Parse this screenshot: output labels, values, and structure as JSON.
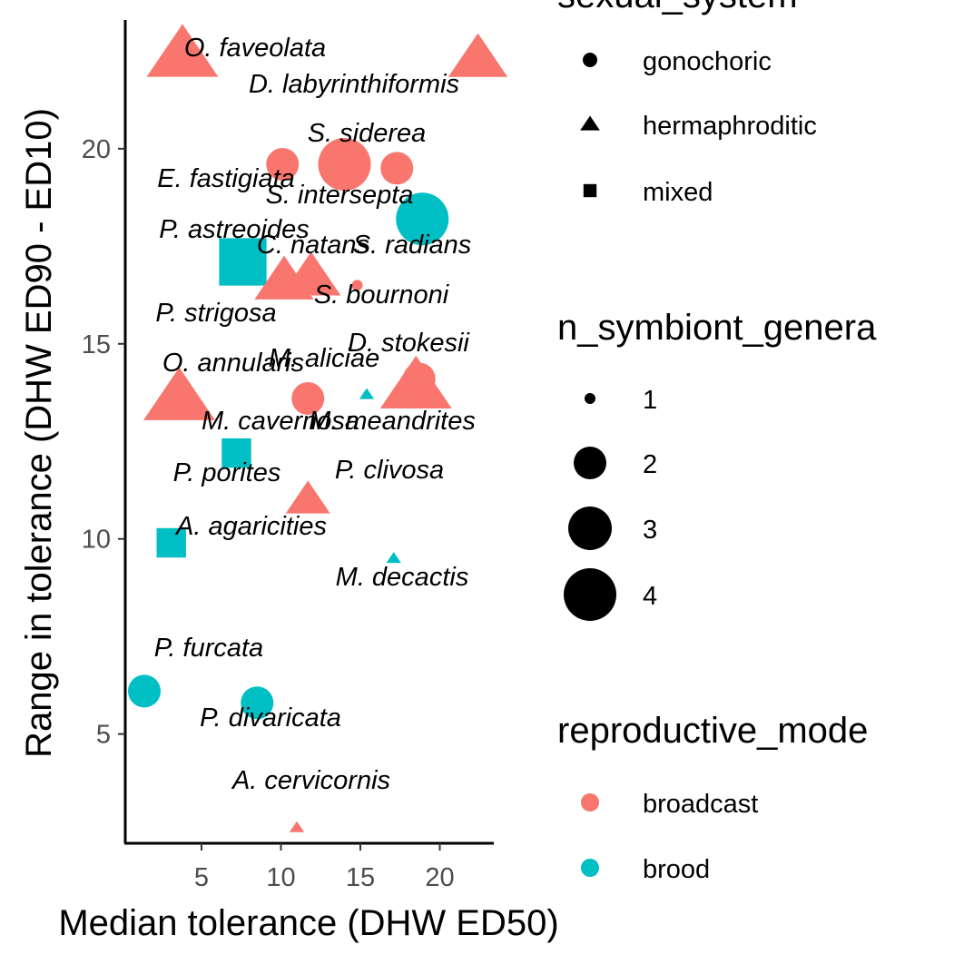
{
  "chart_data": {
    "type": "scatter",
    "xlabel": "Median tolerance (DHW ED50)",
    "ylabel": "Range in tolerance (DHW ED90 - ED10)",
    "xlim": [
      0.2,
      23.4
    ],
    "ylim": [
      2.2,
      23.3
    ],
    "x_ticks": [
      5,
      10,
      15,
      20
    ],
    "y_ticks": [
      5,
      10,
      15,
      20
    ],
    "grid": false,
    "colors": {
      "broadcast": "#F8766D",
      "brood": "#00BFC4"
    },
    "points": [
      {
        "label": "O. faveolata",
        "x": 3.8,
        "y": 22.4,
        "shape": "hermaphroditic",
        "mode": "broadcast",
        "size": 4
      },
      {
        "label": "D. labyrinthiformis",
        "x": 22.4,
        "y": 22.3,
        "shape": "hermaphroditic",
        "mode": "broadcast",
        "size": 3
      },
      {
        "label": "S. siderea",
        "x": 14.0,
        "y": 19.6,
        "shape": "gonochoric",
        "mode": "broadcast",
        "size": 4
      },
      {
        "label": "E. fastigiata",
        "x": 10.1,
        "y": 19.6,
        "shape": "gonochoric",
        "mode": "broadcast",
        "size": 2
      },
      {
        "label": "S. intersepta",
        "x": 17.3,
        "y": 19.5,
        "shape": "gonochoric",
        "mode": "broadcast",
        "size": 2
      },
      {
        "label": "S. radians",
        "x": 18.9,
        "y": 18.2,
        "shape": "gonochoric",
        "mode": "brood",
        "size": 4
      },
      {
        "label": "P. astreoides",
        "x": 7.6,
        "y": 17.1,
        "shape": "mixed",
        "mode": "brood",
        "size": 4
      },
      {
        "label": "C. natans",
        "x": 10.2,
        "y": 16.6,
        "shape": "hermaphroditic",
        "mode": "broadcast",
        "size": 3
      },
      {
        "label": "P. strigosa",
        "x": 11.9,
        "y": 16.7,
        "shape": "hermaphroditic",
        "mode": "broadcast",
        "size": 3
      },
      {
        "label": "S. bournoni",
        "x": 14.8,
        "y": 16.5,
        "shape": "gonochoric",
        "mode": "broadcast",
        "size": 1
      },
      {
        "label": "D. stokesii",
        "x": 18.7,
        "y": 14.1,
        "shape": "gonochoric",
        "mode": "broadcast",
        "size": 2
      },
      {
        "label": "M. aliciae",
        "x": 15.4,
        "y": 13.7,
        "shape": "hermaphroditic",
        "mode": "brood",
        "size": 1
      },
      {
        "label": "O. annularis",
        "x": 3.6,
        "y": 13.6,
        "shape": "hermaphroditic",
        "mode": "broadcast",
        "size": 4
      },
      {
        "label": "M. cavernosa",
        "x": 11.7,
        "y": 13.6,
        "shape": "gonochoric",
        "mode": "broadcast",
        "size": 2
      },
      {
        "label": "M. meandrites",
        "x": 18.5,
        "y": 13.9,
        "shape": "hermaphroditic",
        "mode": "broadcast",
        "size": 4
      },
      {
        "label": "P. porites",
        "x": 7.2,
        "y": 12.2,
        "shape": "mixed",
        "mode": "brood",
        "size": 2
      },
      {
        "label": "P. clivosa",
        "x": 11.7,
        "y": 11.0,
        "shape": "hermaphroditic",
        "mode": "broadcast",
        "size": 2
      },
      {
        "label": "A. agaricities",
        "x": 3.1,
        "y": 9.9,
        "shape": "mixed",
        "mode": "brood",
        "size": 2
      },
      {
        "label": "M. decactis",
        "x": 17.1,
        "y": 9.5,
        "shape": "hermaphroditic",
        "mode": "brood",
        "size": 1
      },
      {
        "label": "P. furcata",
        "x": 1.4,
        "y": 6.1,
        "shape": "gonochoric",
        "mode": "brood",
        "size": 2
      },
      {
        "label": "P. divaricata",
        "x": 8.5,
        "y": 5.8,
        "shape": "gonochoric",
        "mode": "brood",
        "size": 2
      },
      {
        "label": "A. cervicornis",
        "x": 11.0,
        "y": 2.6,
        "shape": "hermaphroditic",
        "mode": "broadcast",
        "size": 1
      }
    ],
    "legends": [
      {
        "title": "sexual_system",
        "kind": "shape",
        "entries": [
          {
            "label": "gonochoric",
            "shape": "gonochoric"
          },
          {
            "label": "hermaphroditic",
            "shape": "hermaphroditic"
          },
          {
            "label": "mixed",
            "shape": "mixed"
          }
        ]
      },
      {
        "title": "n_symbiont_genera",
        "kind": "size",
        "entries": [
          {
            "label": "1",
            "size": 1
          },
          {
            "label": "2",
            "size": 2
          },
          {
            "label": "3",
            "size": 3
          },
          {
            "label": "4",
            "size": 4
          }
        ]
      },
      {
        "title": "reproductive_mode",
        "kind": "color",
        "entries": [
          {
            "label": "broadcast",
            "mode": "broadcast"
          },
          {
            "label": "brood",
            "mode": "brood"
          }
        ]
      }
    ]
  }
}
